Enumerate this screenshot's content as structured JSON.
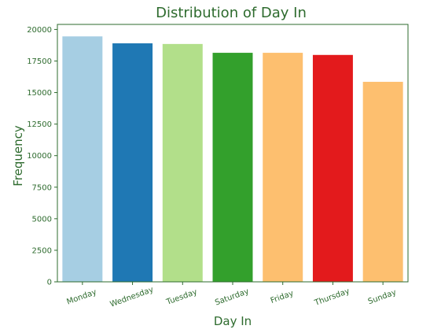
{
  "chart_data": {
    "type": "bar",
    "title": "Distribution of Day In",
    "xlabel": "Day In",
    "ylabel": "Frequency",
    "categories": [
      "Monday",
      "Wednesday",
      "Tuesday",
      "Saturday",
      "Friday",
      "Thursday",
      "Sunday"
    ],
    "values": [
      19450,
      18900,
      18850,
      18150,
      18150,
      17980,
      15850
    ],
    "bar_colors": [
      "#a6cee3",
      "#1f78b4",
      "#b2df8a",
      "#33a02c",
      "#fdbf6f",
      "#e31a1c",
      "#fdbf6f"
    ],
    "ylim": [
      0,
      20400
    ],
    "yticks": [
      0,
      2500,
      5000,
      7500,
      10000,
      12500,
      15000,
      17500,
      20000
    ],
    "ytick_labels": [
      "0",
      "2500",
      "5000",
      "7500",
      "10000",
      "12500",
      "15000",
      "17500",
      "20000"
    ],
    "grid": false,
    "accent_color": "#2e6b2e",
    "xtick_rotation_deg": -20
  }
}
